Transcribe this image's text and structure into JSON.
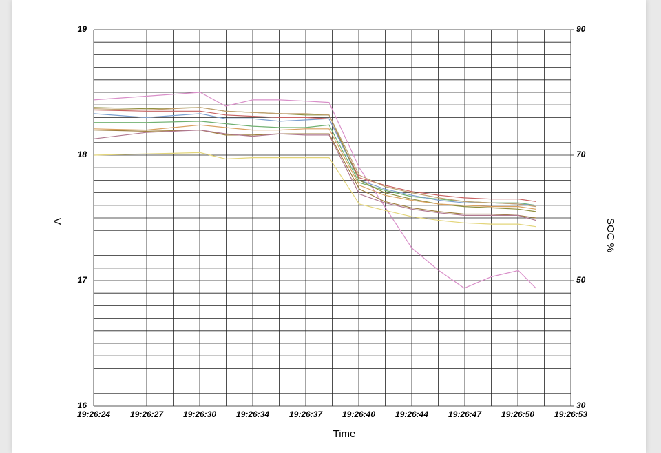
{
  "chart_data": {
    "type": "line",
    "xlabel": "Time",
    "ylabel": "V",
    "y2label": "SOC %",
    "xlim": [
      0,
      30
    ],
    "xticks": [
      {
        "value": 0,
        "label": "19:26:24"
      },
      {
        "value": 3.333,
        "label": "19:26:27"
      },
      {
        "value": 6.667,
        "label": "19:26:30"
      },
      {
        "value": 10,
        "label": "19:26:34"
      },
      {
        "value": 13.333,
        "label": "19:26:37"
      },
      {
        "value": 16.667,
        "label": "19:26:40"
      },
      {
        "value": 20,
        "label": "19:26:44"
      },
      {
        "value": 23.333,
        "label": "19:26:47"
      },
      {
        "value": 26.667,
        "label": "19:26:50"
      },
      {
        "value": 30,
        "label": "19:26:53"
      }
    ],
    "minor_xticks": [
      1.667,
      5,
      8.333,
      11.667,
      15,
      18.333,
      21.667,
      25,
      28.333
    ],
    "ylim": [
      16,
      19
    ],
    "yticks": [
      16,
      17,
      18,
      19
    ],
    "minor_yticks": [
      16.1,
      16.2,
      16.3,
      16.4,
      16.5,
      16.6,
      16.7,
      16.8,
      16.9,
      17.1,
      17.2,
      17.3,
      17.4,
      17.5,
      17.6,
      17.7,
      17.8,
      17.9,
      18.1,
      18.2,
      18.3,
      18.4,
      18.5,
      18.6,
      18.7,
      18.8,
      18.9
    ],
    "y2lim": [
      30,
      90
    ],
    "y2ticks": [
      30,
      50,
      70,
      90
    ],
    "grid": true,
    "x": [
      0,
      3.3,
      6.7,
      8.3,
      10,
      11.7,
      13.3,
      14.8,
      16.7,
      18.3,
      20,
      21.7,
      23.3,
      25,
      26.7,
      27.8
    ],
    "series": [
      {
        "color": "#d98fc9",
        "values": [
          18.44,
          18.47,
          18.5,
          18.39,
          18.44,
          18.44,
          18.43,
          18.42,
          17.9,
          17.59,
          17.26,
          17.08,
          16.94,
          17.03,
          17.08,
          16.94
        ]
      },
      {
        "color": "#e3d57a",
        "values": [
          18.0,
          18.01,
          18.02,
          17.97,
          17.98,
          17.98,
          17.98,
          17.98,
          17.61,
          17.56,
          17.51,
          17.48,
          17.46,
          17.45,
          17.45,
          17.43
        ]
      },
      {
        "color": "#a08040",
        "values": [
          18.2,
          18.19,
          18.2,
          18.16,
          18.16,
          18.17,
          18.17,
          18.17,
          17.73,
          17.63,
          17.58,
          17.55,
          17.53,
          17.53,
          17.52,
          17.5
        ]
      },
      {
        "color": "#c86464",
        "values": [
          18.36,
          18.35,
          18.35,
          18.32,
          18.31,
          18.3,
          18.3,
          18.29,
          17.82,
          17.76,
          17.71,
          17.68,
          17.66,
          17.65,
          17.65,
          17.63
        ]
      },
      {
        "color": "#70b070",
        "values": [
          18.26,
          18.26,
          18.27,
          18.25,
          18.23,
          18.22,
          18.22,
          18.24,
          17.78,
          17.72,
          17.67,
          17.65,
          17.63,
          17.62,
          17.62,
          17.6
        ]
      },
      {
        "color": "#7ca0d0",
        "values": [
          18.33,
          18.3,
          18.33,
          18.29,
          18.29,
          18.27,
          18.28,
          18.29,
          17.8,
          17.73,
          17.68,
          17.64,
          17.62,
          17.62,
          17.61,
          17.6
        ]
      },
      {
        "color": "#909040",
        "values": [
          18.38,
          18.37,
          18.38,
          18.35,
          18.34,
          18.33,
          18.32,
          18.32,
          17.8,
          17.7,
          17.65,
          17.61,
          17.59,
          17.58,
          17.57,
          17.55
        ]
      },
      {
        "color": "#d8a060",
        "values": [
          18.21,
          18.2,
          18.24,
          18.22,
          18.2,
          18.2,
          18.21,
          18.21,
          17.76,
          17.68,
          17.64,
          17.61,
          17.6,
          17.59,
          17.59,
          17.57
        ]
      },
      {
        "color": "#b07890",
        "values": [
          18.13,
          18.18,
          18.2,
          18.17,
          18.15,
          18.17,
          18.16,
          18.16,
          17.69,
          17.62,
          17.57,
          17.54,
          17.52,
          17.52,
          17.52,
          17.48
        ]
      },
      {
        "color": "#c0a070",
        "values": [
          18.37,
          18.36,
          18.38,
          18.35,
          18.34,
          18.33,
          18.33,
          18.32,
          17.84,
          17.75,
          17.7,
          17.66,
          17.63,
          17.62,
          17.61,
          17.59
        ]
      }
    ]
  }
}
